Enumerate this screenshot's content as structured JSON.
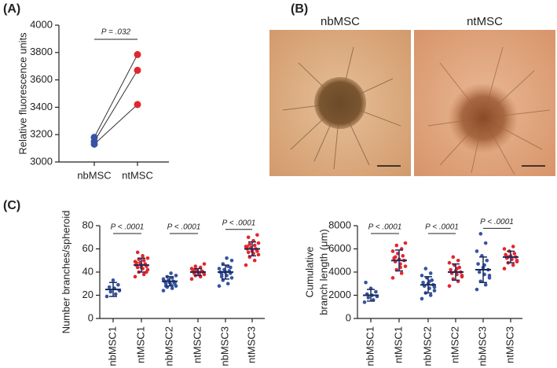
{
  "panels": [
    "(A)",
    "(B)",
    "(C)"
  ],
  "images": {
    "labels": [
      "nbMSC",
      "ntMSC"
    ]
  },
  "chart_data": [
    {
      "type": "paired",
      "ylabel": "Relative fluorescence units",
      "categories": [
        "nbMSC",
        "ntMSC"
      ],
      "colors": [
        "#3653a3",
        "#e3262c"
      ],
      "series": [
        {
          "values": [
            3180,
            3785
          ]
        },
        {
          "values": [
            3150,
            3670
          ]
        },
        {
          "values": [
            3130,
            3420
          ]
        }
      ],
      "annotations": [
        "P = .032"
      ],
      "ylim": [
        3000,
        4000
      ],
      "yticks": [
        3000,
        3200,
        3400,
        3600,
        3800,
        4000
      ]
    },
    {
      "type": "dotplot",
      "ylabel": "Number branches/spheroid",
      "categories": [
        "nbMSC1",
        "ntMSC1",
        "nbMSC2",
        "ntMSC2",
        "nbMSC3",
        "ntMSC3"
      ],
      "colors": [
        "#3653a3",
        "#e3262c"
      ],
      "groups": [
        {
          "points": [
            19,
            21,
            23,
            24,
            26,
            27,
            29,
            33
          ],
          "mean": 25,
          "sd": 6
        },
        {
          "points": [
            36,
            38,
            40,
            42,
            43,
            44,
            45,
            46,
            46,
            47,
            48,
            49,
            50,
            51,
            52,
            54,
            57,
            40,
            44,
            48
          ],
          "mean": 46,
          "sd": 6
        },
        {
          "points": [
            24,
            26,
            27,
            28,
            29,
            30,
            30,
            31,
            32,
            32,
            33,
            34,
            35,
            36,
            37,
            39,
            28,
            31
          ],
          "mean": 32,
          "sd": 4
        },
        {
          "points": [
            34,
            36,
            37,
            38,
            39,
            39,
            40,
            40,
            41,
            41,
            42,
            43,
            44,
            45,
            47,
            38,
            42
          ],
          "mean": 40,
          "sd": 3
        },
        {
          "points": [
            28,
            30,
            33,
            35,
            37,
            38,
            39,
            40,
            40,
            41,
            42,
            43,
            45,
            47,
            50,
            52,
            36,
            44
          ],
          "mean": 40,
          "sd": 6
        },
        {
          "points": [
            46,
            50,
            53,
            55,
            56,
            57,
            58,
            59,
            60,
            60,
            61,
            62,
            63,
            64,
            65,
            67,
            70,
            72,
            58,
            62
          ],
          "mean": 60,
          "sd": 6
        }
      ],
      "annotations": [
        "P < .0001",
        "P < .0001",
        "P < .0001"
      ],
      "ylim": [
        0,
        80
      ],
      "yticks": [
        0,
        20,
        40,
        60,
        80
      ]
    },
    {
      "type": "dotplot",
      "ylabel": [
        "Cumulative",
        "branch length (μm)"
      ],
      "categories": [
        "nbMSC1",
        "ntMSC1",
        "nbMSC2",
        "ntMSC2",
        "nbMSC3",
        "ntMSC3"
      ],
      "colors": [
        "#3653a3",
        "#e3262c"
      ],
      "groups": [
        {
          "points": [
            1400,
            1600,
            1800,
            1900,
            2000,
            2100,
            2300,
            2600,
            3100
          ],
          "mean": 2000,
          "sd": 500
        },
        {
          "points": [
            3500,
            3900,
            4200,
            4500,
            4700,
            4900,
            5000,
            5100,
            5200,
            5400,
            5600,
            5800,
            6000,
            6300,
            6500,
            4400,
            5300
          ],
          "mean": 5000,
          "sd": 900
        },
        {
          "points": [
            1700,
            2000,
            2200,
            2400,
            2600,
            2800,
            2900,
            3000,
            3100,
            3300,
            3500,
            3700,
            3900,
            4300,
            2700,
            3200
          ],
          "mean": 2900,
          "sd": 700
        },
        {
          "points": [
            2800,
            3200,
            3400,
            3600,
            3800,
            3900,
            4000,
            4100,
            4200,
            4400,
            4600,
            4800,
            5000,
            5300,
            3700,
            4300
          ],
          "mean": 4000,
          "sd": 700
        },
        {
          "points": [
            2500,
            2900,
            3200,
            3500,
            3800,
            4000,
            4200,
            4400,
            4700,
            5000,
            5400,
            5800,
            6500,
            7300,
            3700,
            4600
          ],
          "mean": 4200,
          "sd": 1100
        },
        {
          "points": [
            4300,
            4600,
            4800,
            5000,
            5100,
            5200,
            5300,
            5400,
            5500,
            5600,
            5800,
            6000,
            6200,
            5300,
            4900
          ],
          "mean": 5300,
          "sd": 500
        }
      ],
      "annotations": [
        "P < .0001",
        "P < .0001",
        "P < .0001"
      ],
      "ylim": [
        0,
        8000
      ],
      "yticks": [
        0,
        2000,
        4000,
        6000,
        8000
      ]
    }
  ]
}
